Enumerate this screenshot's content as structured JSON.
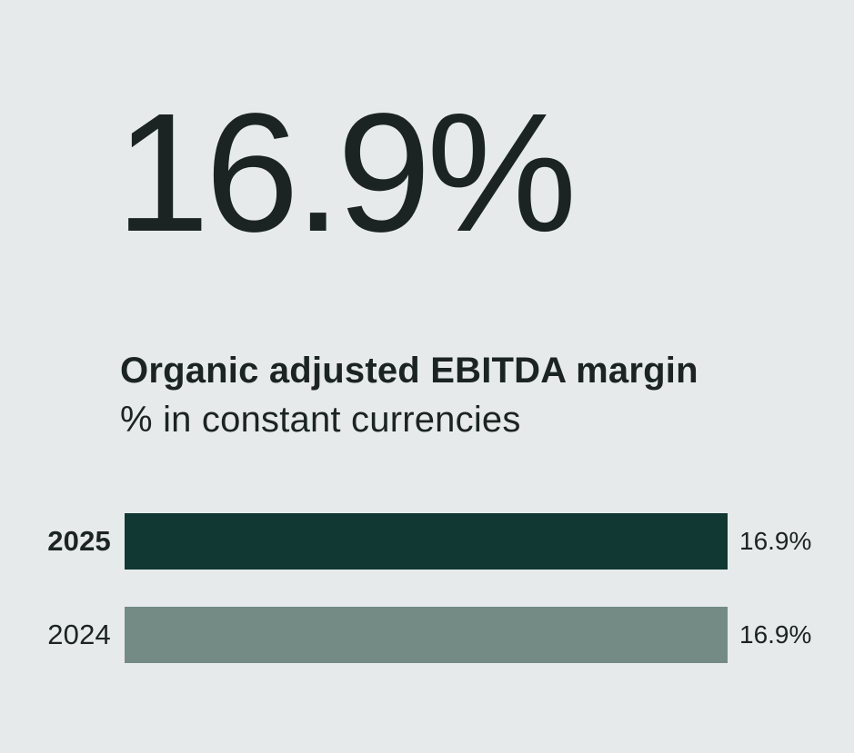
{
  "page": {
    "background_color": "#e7eaea",
    "text_color": "#1b2423"
  },
  "headline": {
    "value": "16.9%"
  },
  "chart_data": {
    "type": "bar",
    "orientation": "horizontal",
    "title": "Organic adjusted EBITDA margin",
    "subtitle": "% in constant currencies",
    "categories": [
      "2025",
      "2024"
    ],
    "values": [
      16.9,
      16.9
    ],
    "value_labels": [
      "16.9%",
      "16.9%"
    ],
    "unit": "%",
    "xlim": [
      0,
      16.9
    ],
    "bar_colors": [
      "#113833",
      "#748a85"
    ],
    "grid": false,
    "legend": "none"
  }
}
